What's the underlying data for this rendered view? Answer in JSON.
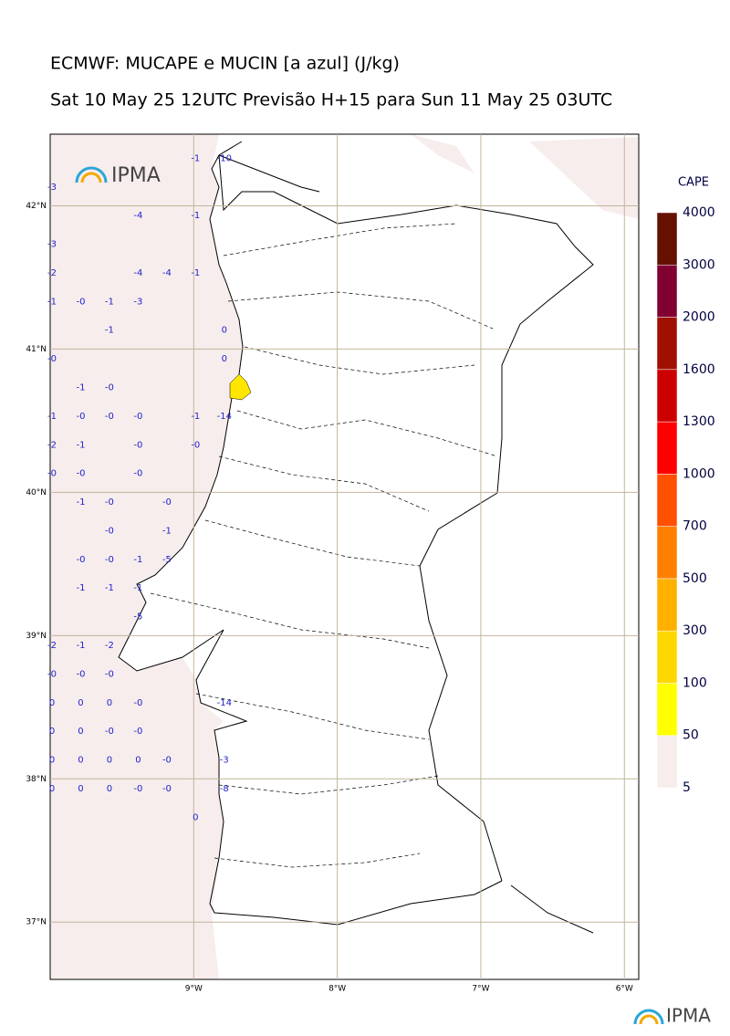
{
  "header": {
    "title": "ECMWF: MUCAPE e MUCIN [a azul] (J/kg)",
    "subtitle": "Sat 10 May 25 12UTC Previsão H+15 para Sun 11 May 25 03UTC",
    "logo_text": "IPMA"
  },
  "map": {
    "lonlim": [
      -10,
      -5.9
    ],
    "latlim": [
      36.6,
      42.5
    ],
    "lonticks": [
      {
        "value": -9,
        "label": "9°W"
      },
      {
        "value": -8,
        "label": "8°W"
      },
      {
        "value": -7,
        "label": "7°W"
      },
      {
        "value": -6,
        "label": "6°W"
      }
    ],
    "latticks": [
      {
        "value": 37,
        "label": "37°N"
      },
      {
        "value": 38,
        "label": "38°N"
      },
      {
        "value": 39,
        "label": "39°N"
      },
      {
        "value": 40,
        "label": "40°N"
      },
      {
        "value": 41,
        "label": "41°N"
      },
      {
        "value": 42,
        "label": "42°N"
      }
    ],
    "grid": true,
    "cin": {
      "lons": [
        -10,
        -9.8,
        -9.6,
        -9.4,
        -9.2,
        -9.0,
        -8.8
      ],
      "lats": [
        42.3,
        42.1,
        41.9,
        41.7,
        41.5,
        41.3,
        41.1,
        40.9,
        40.7,
        40.5,
        40.3,
        40.1,
        39.9,
        39.7,
        39.5,
        39.3,
        39.1,
        38.9,
        38.7,
        38.5,
        38.3,
        38.1,
        37.9,
        37.7
      ],
      "values": [
        [
          null,
          null,
          null,
          null,
          null,
          "-1",
          "-10"
        ],
        [
          "-3",
          null,
          null,
          null,
          null,
          null,
          null
        ],
        [
          null,
          null,
          null,
          "-4",
          null,
          "-1",
          null
        ],
        [
          "-3",
          null,
          null,
          null,
          null,
          null,
          null
        ],
        [
          "-2",
          null,
          null,
          "-4",
          "-4",
          "-1",
          null
        ],
        [
          "-1",
          "-0",
          "-1",
          "-3",
          null,
          null,
          null
        ],
        [
          null,
          null,
          "-1",
          null,
          null,
          null,
          "0"
        ],
        [
          "-0",
          null,
          null,
          null,
          null,
          null,
          "0"
        ],
        [
          null,
          "-1",
          "-0",
          null,
          null,
          null,
          null
        ],
        [
          "-1",
          "-0",
          "-0",
          "-0",
          null,
          "-1",
          "-14"
        ],
        [
          "-2",
          "-1",
          null,
          "-0",
          null,
          "-0",
          null
        ],
        [
          "-0",
          "-0",
          null,
          "-0",
          null,
          null,
          null
        ],
        [
          null,
          "-1",
          "-0",
          null,
          "-0",
          null,
          null
        ],
        [
          null,
          null,
          "-0",
          null,
          "-1",
          null,
          null
        ],
        [
          null,
          "-0",
          "-0",
          "-1",
          "-5",
          null,
          null
        ],
        [
          null,
          "-1",
          "-1",
          "-1",
          null,
          null,
          null
        ],
        [
          null,
          null,
          null,
          "-5",
          null,
          null,
          null
        ],
        [
          "-2",
          "-1",
          "-2",
          null,
          null,
          null,
          null
        ],
        [
          "-0",
          "-0",
          "-0",
          null,
          null,
          null,
          null
        ],
        [
          "0",
          "0",
          "0",
          "-0",
          null,
          null,
          "-14"
        ],
        [
          "0",
          "0",
          "-0",
          "-0",
          null,
          null,
          null
        ],
        [
          "0",
          "0",
          "0",
          "0",
          "-0",
          null,
          "-3"
        ],
        [
          "0",
          "0",
          "0",
          "-0",
          "-0",
          null,
          "-8"
        ],
        [
          null,
          null,
          null,
          null,
          null,
          "0",
          null
        ]
      ]
    }
  },
  "colorbar": {
    "label": "CAPE",
    "levels": [
      5,
      50,
      100,
      300,
      500,
      700,
      1000,
      1300,
      1600,
      2000,
      3000,
      4000
    ],
    "colors": [
      "#f7eded",
      "#ffff00",
      "#ffd700",
      "#ffb000",
      "#ff8000",
      "#ff5000",
      "#ff0000",
      "#cc0000",
      "#a01000",
      "#800030",
      "#661000"
    ]
  }
}
